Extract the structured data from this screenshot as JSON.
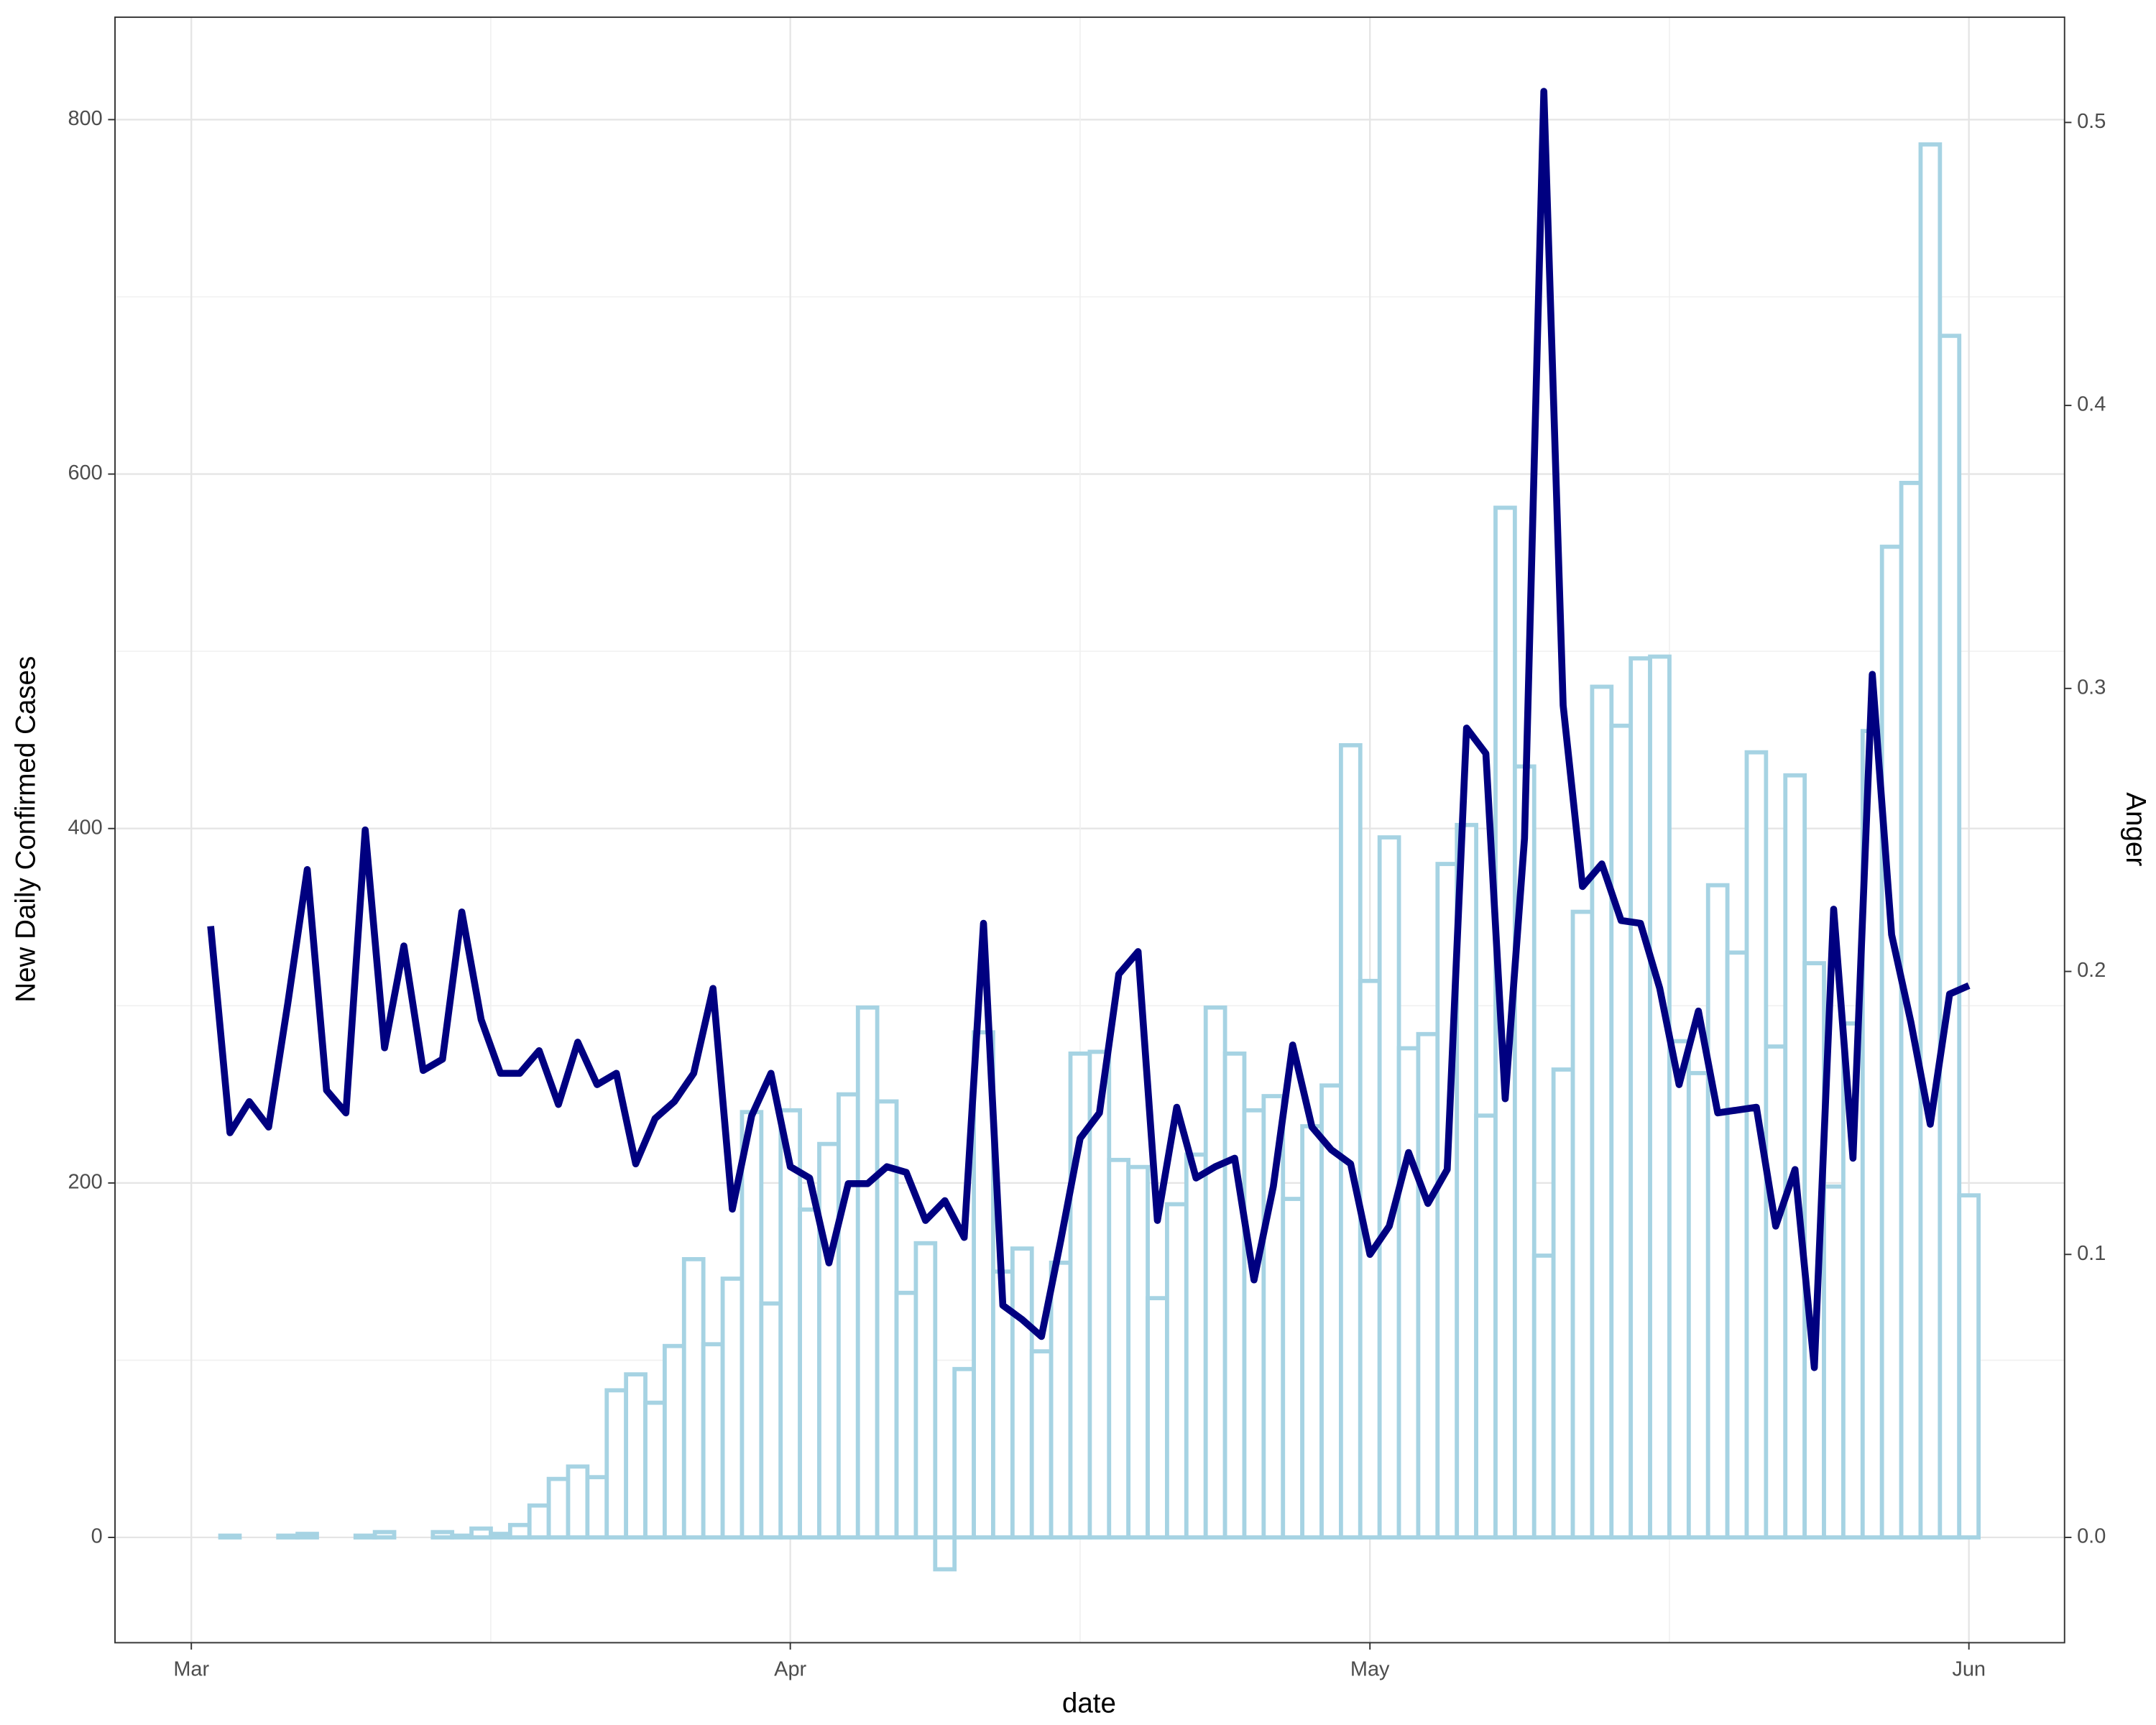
{
  "chart_data": {
    "type": "bar",
    "x_label": "date",
    "y_label": "New Daily Confirmed Cases",
    "y2_label": "Anger",
    "grid": true,
    "categories": [
      "Mar",
      null,
      null,
      null,
      null,
      null,
      null,
      null,
      null,
      null,
      null,
      null,
      null,
      null,
      null,
      null,
      null,
      null,
      null,
      null,
      null,
      null,
      null,
      null,
      null,
      null,
      null,
      null,
      null,
      null,
      null,
      "Apr",
      null,
      null,
      null,
      null,
      null,
      null,
      null,
      null,
      null,
      null,
      null,
      null,
      null,
      null,
      null,
      null,
      null,
      null,
      null,
      null,
      null,
      null,
      null,
      null,
      null,
      null,
      null,
      null,
      null,
      "May",
      null,
      null,
      null,
      null,
      null,
      null,
      null,
      null,
      null,
      null,
      null,
      null,
      null,
      null,
      null,
      null,
      null,
      null,
      null,
      null,
      null,
      null,
      null,
      null,
      null,
      null,
      null,
      null,
      null,
      null,
      "Jun"
    ],
    "series": [
      {
        "type": "bar",
        "color": "#a6d3e3",
        "values": [
          null,
          0,
          1,
          0,
          0,
          1,
          2,
          0,
          0,
          1,
          3,
          0,
          0,
          3,
          1,
          5,
          2,
          7,
          18,
          33,
          40,
          34,
          83,
          92,
          76,
          108,
          157,
          109,
          146,
          240,
          132,
          241,
          185,
          222,
          250,
          299,
          246,
          138,
          166,
          -18,
          95,
          285,
          150,
          163,
          105,
          155,
          273,
          274,
          213,
          209,
          135,
          188,
          216,
          299,
          273,
          241,
          249,
          191,
          232,
          255,
          447,
          314,
          395,
          276,
          284,
          380,
          402,
          238,
          581,
          435,
          159,
          264,
          353,
          480,
          458,
          496,
          497,
          280,
          262,
          368,
          330,
          443,
          277,
          430,
          324,
          198,
          290,
          455,
          559,
          595,
          786,
          678,
          193
        ]
      },
      {
        "type": "line",
        "axis": "y2",
        "color": "#000080",
        "values": [
          null,
          0.216,
          0.143,
          0.154,
          0.145,
          0.189,
          0.236,
          0.158,
          0.15,
          0.25,
          0.173,
          0.209,
          0.165,
          0.169,
          0.221,
          0.183,
          0.164,
          0.164,
          0.172,
          0.153,
          0.175,
          0.16,
          0.164,
          0.132,
          0.148,
          0.154,
          0.164,
          0.194,
          0.116,
          0.149,
          0.164,
          0.131,
          0.127,
          0.097,
          0.125,
          0.125,
          0.131,
          0.129,
          0.112,
          0.119,
          0.106,
          0.217,
          0.082,
          0.077,
          0.071,
          0.105,
          0.141,
          0.15,
          0.199,
          0.207,
          0.112,
          0.152,
          0.127,
          0.131,
          0.134,
          0.091,
          0.124,
          0.174,
          0.145,
          0.137,
          0.132,
          0.1,
          0.11,
          0.136,
          0.118,
          0.13,
          0.286,
          0.277,
          0.155,
          0.247,
          0.511,
          0.294,
          0.23,
          0.238,
          0.218,
          0.217,
          0.194,
          0.16,
          0.186,
          0.15,
          0.151,
          0.152,
          0.11,
          0.13,
          0.06,
          0.222,
          0.134,
          0.305,
          0.213,
          0.182,
          0.146,
          0.192,
          0.195
        ]
      }
    ],
    "ylim": [
      -59.4,
      857.8
    ],
    "yticks": [
      0,
      200,
      400,
      600,
      800
    ],
    "y2lim": [
      -0.0372,
      0.5372
    ],
    "y2ticks": [
      {
        "value": 0,
        "label": "0.0"
      },
      0.1,
      0.2,
      0.3,
      0.4,
      0.5
    ]
  }
}
